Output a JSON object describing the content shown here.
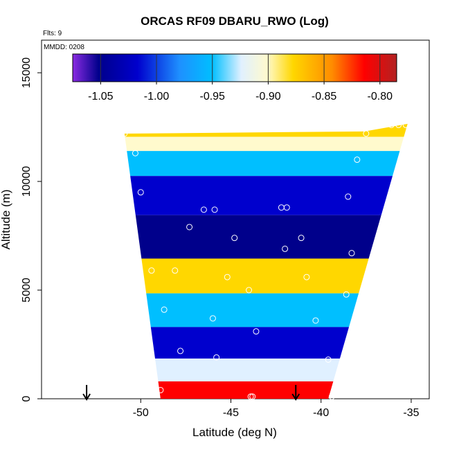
{
  "chart_data": {
    "type": "heatmap",
    "title": "ORCAS RF09 DBARU_RWO (Log)",
    "annotations": {
      "flights": "Flts: 9",
      "date": "MMDD: 0208"
    },
    "xlabel": "Latitude (deg N)",
    "ylabel": "Altitude (m)",
    "xlim": [
      -55.5,
      -34.0
    ],
    "ylim": [
      0,
      16500
    ],
    "x_ticks": [
      -50,
      -45,
      -40,
      -35
    ],
    "x_tick_labels": [
      "-50",
      "-45",
      "-40",
      "-35"
    ],
    "y_ticks": [
      0,
      5000,
      10000,
      15000
    ],
    "y_tick_labels": [
      "0",
      "5000",
      "10000",
      "15000"
    ],
    "colorbar": {
      "range": [
        -1.075,
        -0.785
      ],
      "ticks": [
        -1.05,
        -1.0,
        -0.95,
        -0.9,
        -0.85,
        -0.8
      ],
      "tick_labels": [
        "-1.05",
        "-1.00",
        "-0.95",
        "-0.90",
        "-0.85",
        "-0.80"
      ],
      "colors": [
        "#8a2be2",
        "#00008b",
        "#0000cd",
        "#1e90ff",
        "#00bfff",
        "#e0f0ff",
        "#fffacd",
        "#ffd700",
        "#ff8c00",
        "#ff0000",
        "#b22222"
      ]
    },
    "field_outline": [
      [
        -50.9,
        12200
      ],
      [
        -37.6,
        12300
      ],
      [
        -35.2,
        12650
      ],
      [
        -39.6,
        0
      ],
      [
        -48.9,
        0
      ],
      [
        -50.9,
        12200
      ]
    ],
    "layers": [
      {
        "name": "band",
        "y": 12300,
        "value": -0.86
      },
      {
        "name": "band",
        "y": 11800,
        "value": -0.91
      },
      {
        "name": "band",
        "y": 11000,
        "value": -0.96
      },
      {
        "name": "band",
        "y": 9500,
        "value": -1.01
      },
      {
        "name": "band",
        "y": 7400,
        "value": -1.04
      },
      {
        "name": "band",
        "y": 5500,
        "value": -0.88
      },
      {
        "name": "band",
        "y": 4200,
        "value": -0.97
      },
      {
        "name": "band",
        "y": 2400,
        "value": -1.02
      },
      {
        "name": "band",
        "y": 1300,
        "value": -0.92
      },
      {
        "name": "band",
        "y": 300,
        "value": -0.81
      }
    ],
    "sample_points": [
      [
        -50.9,
        12200
      ],
      [
        -50.3,
        11300
      ],
      [
        -50.0,
        9500
      ],
      [
        -49.4,
        5900
      ],
      [
        -48.1,
        5900
      ],
      [
        -47.3,
        7900
      ],
      [
        -46.5,
        8700
      ],
      [
        -45.9,
        8700
      ],
      [
        -44.8,
        7400
      ],
      [
        -45.2,
        5600
      ],
      [
        -46.0,
        3700
      ],
      [
        -43.6,
        3100
      ],
      [
        -48.7,
        4100
      ],
      [
        -47.8,
        2200
      ],
      [
        -49.9,
        2100
      ],
      [
        -49.3,
        200
      ],
      [
        -48.9,
        400
      ],
      [
        -43.9,
        100
      ],
      [
        -43.8,
        100
      ],
      [
        -39.4,
        100
      ],
      [
        -42.0,
        6900
      ],
      [
        -42.2,
        8800
      ],
      [
        -41.9,
        8800
      ],
      [
        -41.1,
        7400
      ],
      [
        -40.8,
        5600
      ],
      [
        -40.3,
        3600
      ],
      [
        -39.6,
        1800
      ],
      [
        -38.6,
        4800
      ],
      [
        -38.3,
        6700
      ],
      [
        -38.5,
        9300
      ],
      [
        -38.0,
        11000
      ],
      [
        -37.5,
        12200
      ],
      [
        -36.1,
        12600
      ],
      [
        -35.7,
        12600
      ],
      [
        -35.3,
        12600
      ],
      [
        -45.8,
        1900
      ],
      [
        -44.0,
        5000
      ]
    ],
    "flight_markers": [
      -53.0,
      -41.4
    ]
  }
}
